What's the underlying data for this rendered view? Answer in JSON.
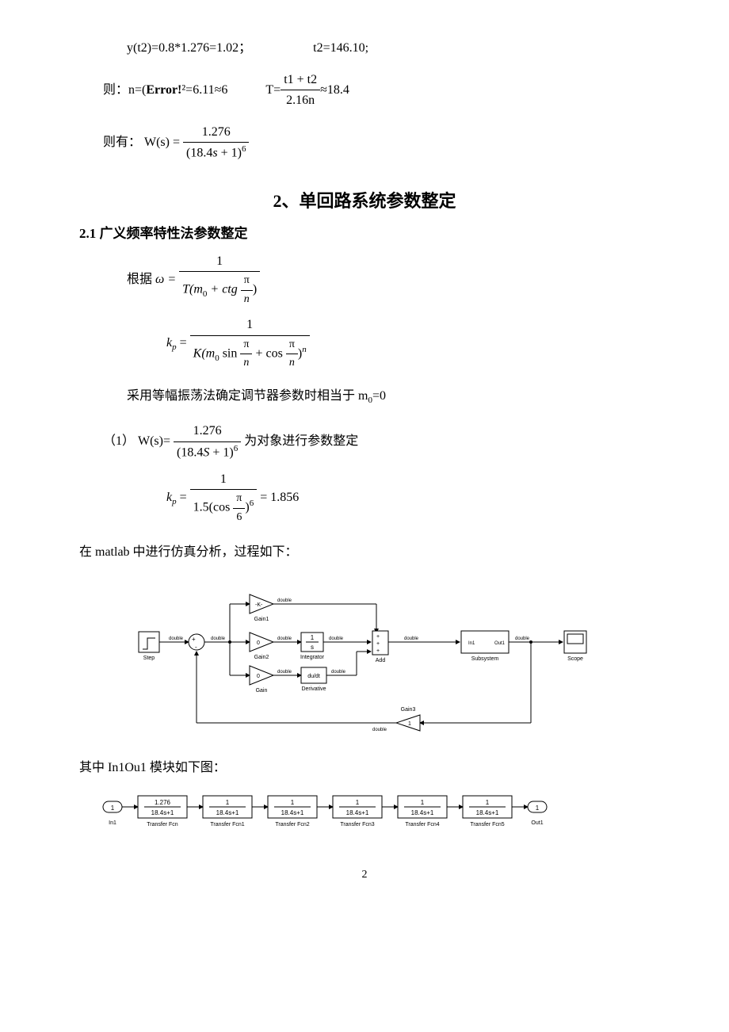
{
  "equations": {
    "yt2": "y(t2)=0.8*1.276=1.02；",
    "t2": "t2=146.10;",
    "n_prefix": "则：n=(",
    "error_text": "Error!",
    "n_suffix1": "²=6.11≈6",
    "T_prefix": "T=",
    "T_num": "t1 + t2",
    "T_den": "2.16n",
    "T_suffix": "≈18.4",
    "ws_prefix": "则有：  W(s) = ",
    "ws_num": "1.276",
    "ws_den_base": "(18.4",
    "ws_den_var": "s",
    "ws_den_tail": " + 1)",
    "ws_den_exp": "6"
  },
  "section_title": "2、单回路系统参数整定",
  "subsection_title": "2.1   广义频率特性法参数整定",
  "lines": {
    "genju": "根据",
    "omega_eq": "ω = ",
    "omega_num": "1",
    "omega_den_left": "T(m",
    "omega_den_sub0": "0",
    "omega_den_middle": " + ctg ",
    "omega_den_frac_num": "π",
    "omega_den_frac_den": "n",
    "omega_den_right": ")",
    "kp_eq": "k",
    "kp_sub": "p",
    "kp_assign": " = ",
    "kp_num": "1",
    "kp_den_left": "K(m",
    "kp_den_sub0": "0",
    "kp_den_sin": " sin ",
    "kp_den_plus": " + cos ",
    "kp_den_exp": "n",
    "m0_text": "采用等幅振荡法确定调节器参数时相当于 m",
    "m0_sub": "0",
    "m0_tail": "=0",
    "item1_prefix": "（1）    W(s)=  ",
    "item1_num": "1.276",
    "item1_den_base": "(18.4",
    "item1_den_var": "S",
    "item1_den_tail": " + 1)",
    "item1_den_exp": "6",
    "item1_suffix": "为对象进行参数整定",
    "kp2_num": "1",
    "kp2_den_left": "1.5(cos ",
    "kp2_den_right": ")",
    "kp2_den_exp": "6",
    "kp2_result": " = 1.856",
    "matlab_text": "在 matlab 中进行仿真分析，过程如下：",
    "in1ou1_text": "其中 In1Ou1 模块如下图："
  },
  "simulink_main": {
    "bg": "#ffffff",
    "box_stroke": "#000000",
    "line_stroke": "#000000",
    "font_size": 8,
    "label_size": 7,
    "blocks": {
      "step": {
        "label": "Step",
        "signal": "double"
      },
      "sum1": {
        "ports": [
          "+",
          "-"
        ]
      },
      "gain1": {
        "label": "Gain1",
        "value": "-K-",
        "signal": "double"
      },
      "gain2": {
        "label": "Gain2",
        "value": "0",
        "signal": "double"
      },
      "gain": {
        "label": "Gain",
        "value": "0",
        "signal": "double"
      },
      "integrator": {
        "label": "Integrator",
        "value_num": "1",
        "value_den": "s",
        "signal": "double"
      },
      "derivative": {
        "label": "Derivative",
        "value": "du/dt",
        "signal": "double"
      },
      "add": {
        "label": "Add",
        "ports": [
          "+",
          "+",
          "+"
        ],
        "signal": "double"
      },
      "subsystem": {
        "label": "Subsystem",
        "in": "In1",
        "out": "Out1",
        "signal": "double"
      },
      "scope": {
        "label": "Scope"
      },
      "gain3": {
        "label": "Gain3",
        "value": "1",
        "signal": "double"
      }
    }
  },
  "simulink_sub": {
    "in_label": "In1",
    "in_port": "1",
    "blocks": [
      {
        "num": "1.276",
        "den": "18.4s+1",
        "label": "Transfer Fcn"
      },
      {
        "num": "1",
        "den": "18.4s+1",
        "label": "Transfer Fcn1"
      },
      {
        "num": "1",
        "den": "18.4s+1",
        "label": "Transfer Fcn2"
      },
      {
        "num": "1",
        "den": "18.4s+1",
        "label": "Transfer Fcn3"
      },
      {
        "num": "1",
        "den": "18.4s+1",
        "label": "Transfer Fcn4"
      },
      {
        "num": "1",
        "den": "18.4s+1",
        "label": "Transfer Fcn5"
      }
    ],
    "out_port": "1",
    "out_label": "Out1"
  },
  "page_number": "2"
}
